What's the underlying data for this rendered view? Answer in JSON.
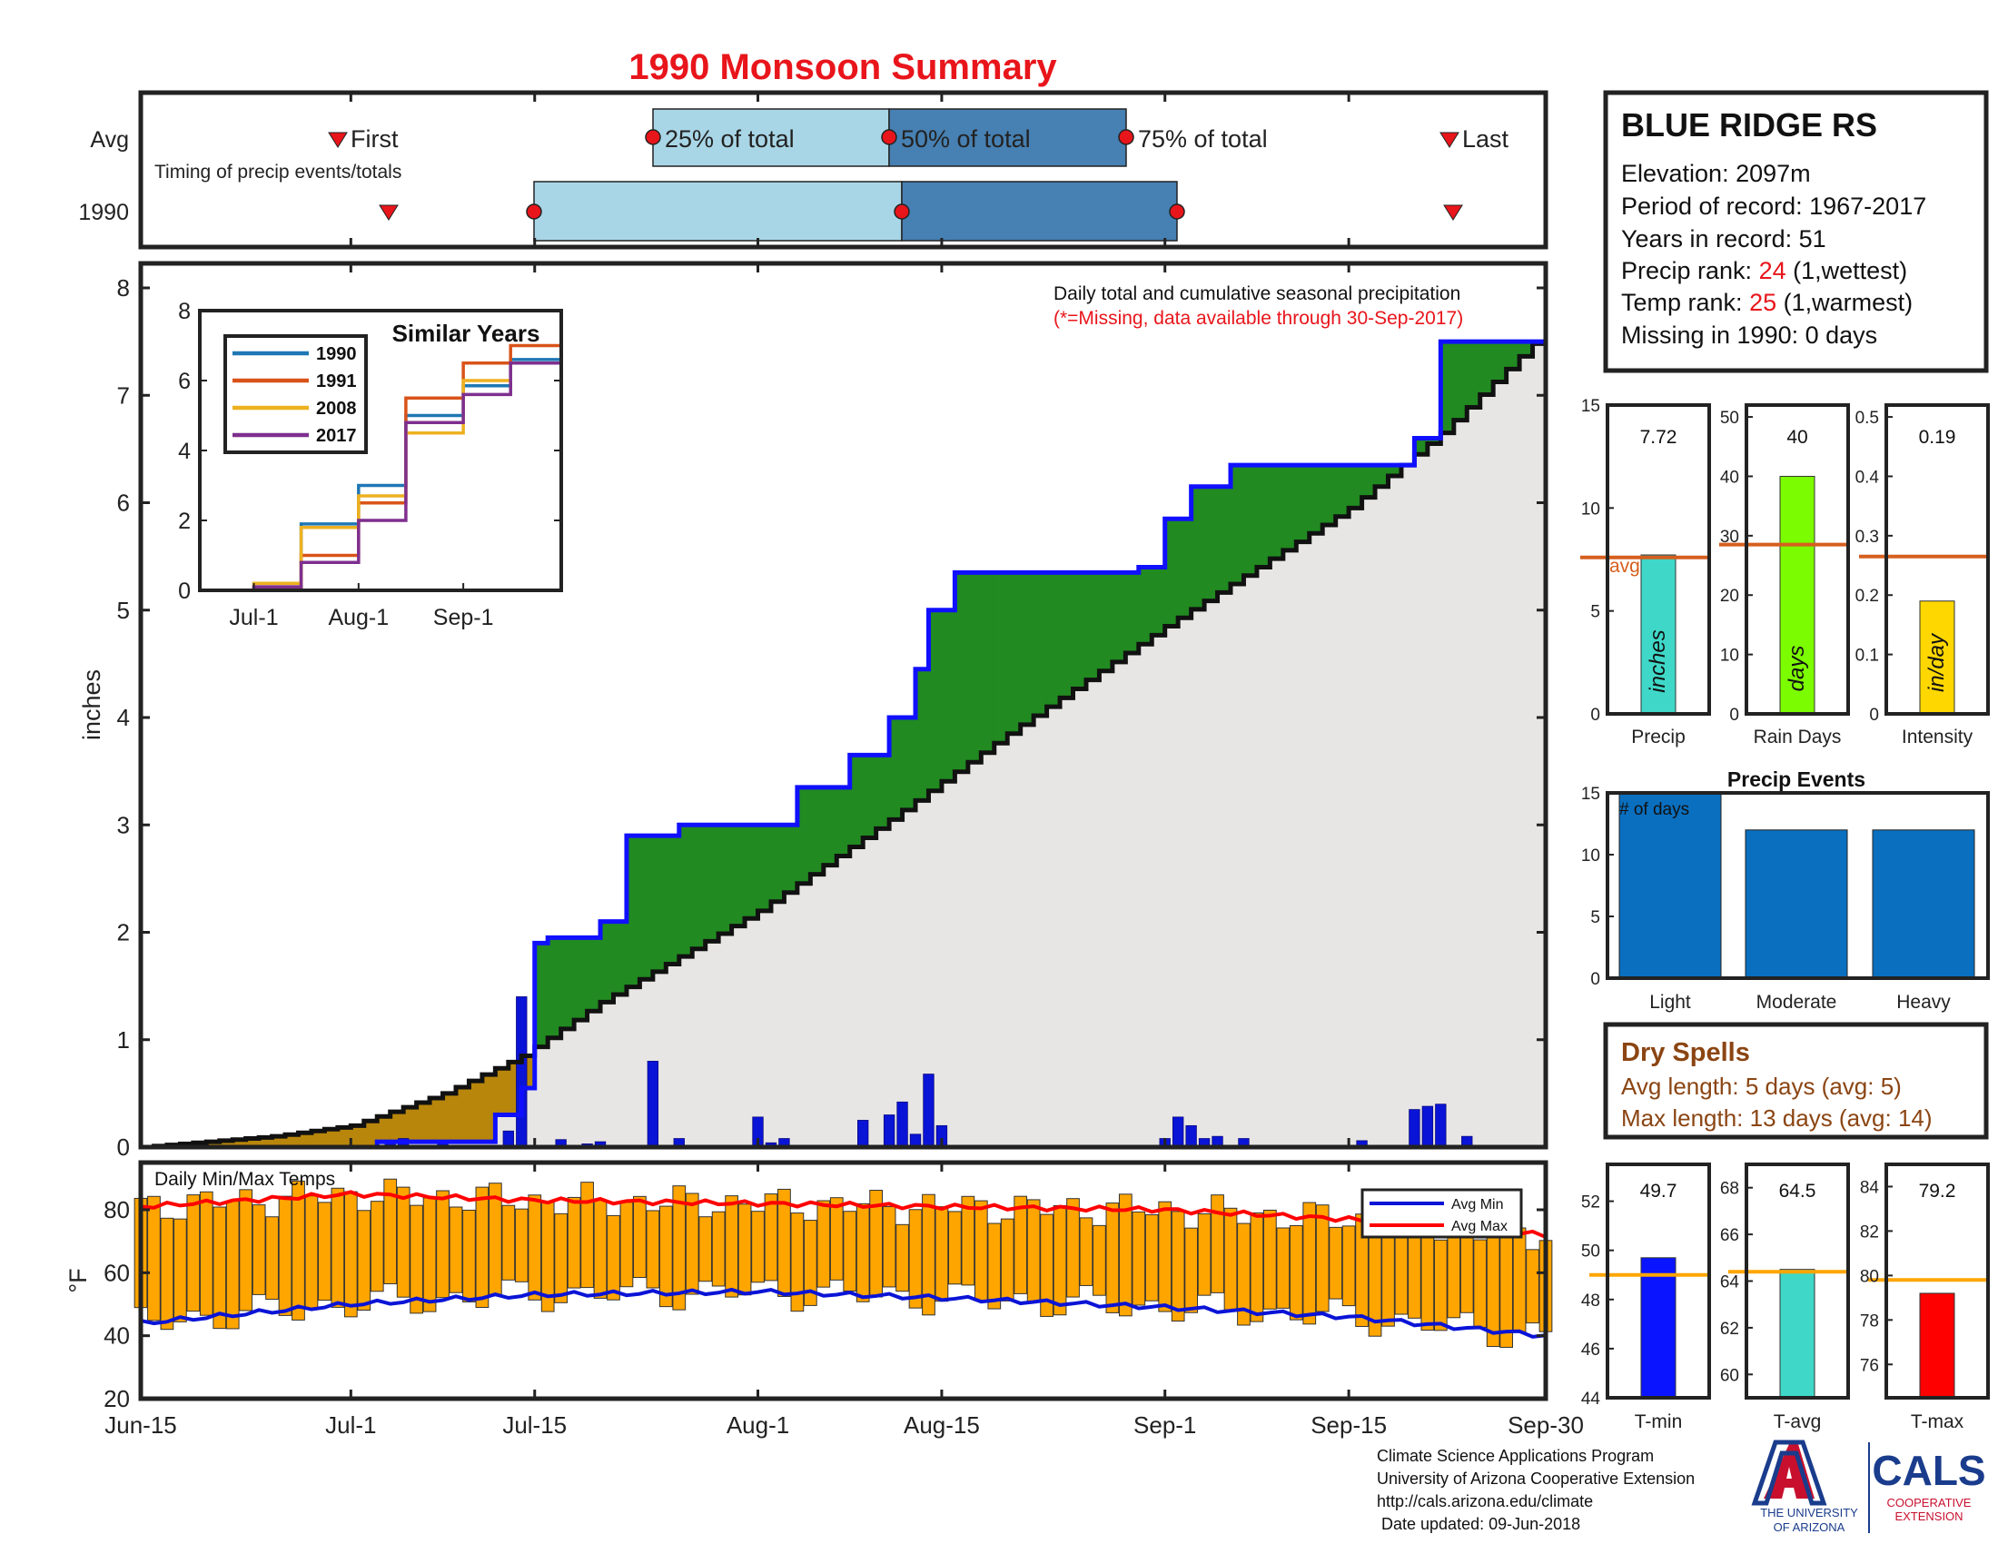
{
  "title": "1990 Monsoon Summary",
  "colors": {
    "title": "#e8151b",
    "cumulative_avg_fill": "#e8e6e4",
    "above_avg": "#218a21",
    "below_avg": "#b8860b",
    "year_line": "#1010ff",
    "avg_line": "#111111",
    "daily_bar": "#0a14d6",
    "temp_bar": "#ffa500",
    "avg_max": "#ff0000",
    "avg_min": "#0a14d6",
    "timing_light": "#a9d6e6",
    "timing_dark": "#4780b2",
    "marker_red": "#e8151b",
    "brown_text": "#8b4513",
    "orange_line": "#d65f1e",
    "precip_bar": "#3fd8c8",
    "raindays_bar": "#7cfc00",
    "intensity_bar": "#ffd700",
    "events_bar": "#0a6fbf",
    "tmin_bar": "#0a14ff",
    "tavg_bar": "#3fd8c8",
    "tmax_bar": "#ff0000",
    "temp_ref_line": "#ffa500",
    "ua_blue": "#1a3c8c",
    "ua_red": "#c8102e"
  },
  "timing": {
    "row_labels": [
      "Avg",
      "1990"
    ],
    "caption": "Timing of precip events/totals",
    "first_label": "First",
    "last_label": "Last",
    "p25_label": "25% of total",
    "p50_label": "50% of total",
    "p75_label": "75% of total",
    "avg": {
      "first": "Jul-1",
      "p25": "Jul-26",
      "p50": "Aug-10",
      "p75": "Aug-26",
      "last": "Sep-23"
    },
    "year": {
      "first": "Jul-3",
      "p25": "Jul-15",
      "p50": "Aug-11",
      "p75": "Sep-1",
      "last": "Sep-23"
    }
  },
  "station": {
    "name": "BLUE RIDGE RS",
    "elevation": "Elevation: 2097m",
    "period": "Period of record: 1967-2017",
    "years": "Years in record: 51",
    "precip_rank_label": "Precip rank: ",
    "precip_rank_value": "24",
    "precip_rank_note": " (1,wettest)",
    "temp_rank_label": "Temp rank: ",
    "temp_rank_value": "25",
    "temp_rank_note": " (1,warmest)",
    "missing": "Missing in 1990: 0 days"
  },
  "main_chart": {
    "ylabel": "inches",
    "ylim": [
      0,
      8
    ],
    "yticks": [
      "0",
      "1",
      "2",
      "3",
      "4",
      "5",
      "6",
      "7",
      "8"
    ],
    "note": "Daily total and cumulative seasonal precipitation",
    "note_missing": "(*=Missing, data available through 30-Sep-2017)"
  },
  "x_axis": {
    "ticks": [
      "Jun-15",
      "Jul-1",
      "Jul-15",
      "Aug-1",
      "Aug-15",
      "Sep-1",
      "Sep-15",
      "Sep-30"
    ]
  },
  "inset": {
    "title": "Similar Years",
    "yticks": [
      "0",
      "2",
      "4",
      "6",
      "8"
    ],
    "xticks": [
      "Jul-1",
      "Aug-1",
      "Sep-1"
    ],
    "legend": [
      {
        "name": "1990",
        "color": "#1f77b4"
      },
      {
        "name": "1991",
        "color": "#d95319"
      },
      {
        "name": "2008",
        "color": "#edb120"
      },
      {
        "name": "2017",
        "color": "#7e2f8e"
      }
    ]
  },
  "temps": {
    "label": "Daily Min/Max Temps",
    "ylabel": "°F",
    "ylim": [
      20,
      95
    ],
    "yticks": [
      "20",
      "40",
      "60",
      "80"
    ],
    "legend_min": "Avg Min",
    "legend_max": "Avg Max"
  },
  "summary": {
    "precip": {
      "value": "7.72",
      "label": "Precip",
      "unit": "inches",
      "avg_label": "avg",
      "yticks": [
        "0",
        "5",
        "10",
        "15"
      ]
    },
    "rain_days": {
      "value": "40",
      "label": "Rain Days",
      "unit": "days",
      "yticks": [
        "0",
        "10",
        "20",
        "30",
        "40",
        "50"
      ]
    },
    "intensity": {
      "value": "0.19",
      "label": "Intensity",
      "unit": "in/day",
      "yticks": [
        "0",
        "0.1",
        "0.2",
        "0.3",
        "0.4",
        "0.5"
      ]
    }
  },
  "events": {
    "title": "Precip Events",
    "note": "# of days",
    "yticks": [
      "0",
      "5",
      "10",
      "15"
    ],
    "categories": [
      "Light",
      "Moderate",
      "Heavy"
    ]
  },
  "dry_spells": {
    "title": "Dry Spells",
    "avg": "Avg length: 5 days (avg: 5)",
    "max": "Max length: 13 days (avg: 14)"
  },
  "temp_summary": {
    "tmin": {
      "value": "49.7",
      "label": "T-min",
      "yticks": [
        "44",
        "46",
        "48",
        "50",
        "52"
      ]
    },
    "tavg": {
      "value": "64.5",
      "label": "T-avg",
      "yticks": [
        "60",
        "62",
        "64",
        "66",
        "68"
      ]
    },
    "tmax": {
      "value": "79.2",
      "label": "T-max",
      "yticks": [
        "76",
        "78",
        "80",
        "82",
        "84"
      ]
    }
  },
  "footer": {
    "line1": "Climate Science Applications Program",
    "line2": "University of Arizona Cooperative Extension",
    "line3": "http://cals.arizona.edu/climate",
    "line4": " Date updated: 09-Jun-2018"
  },
  "logo": {
    "ua_name": "THE UNIVERSITY",
    "ua_name2": "OF ARIZONA",
    "cals": "CALS",
    "cals_sub1": "COOPERATIVE",
    "cals_sub2": "EXTENSION"
  },
  "chart_data": [
    {
      "type": "area",
      "title": "Daily total and cumulative seasonal precipitation",
      "ylabel": "inches",
      "ylim": [
        0,
        8
      ],
      "x_range": [
        "Jun-15",
        "Sep-30"
      ],
      "series": [
        {
          "name": "1990",
          "x": [
            "Jun-15",
            "Jul-3",
            "Jul-12",
            "Jul-14",
            "Jul-15",
            "Jul-16",
            "Jul-20",
            "Jul-22",
            "Jul-26",
            "Aug-4",
            "Aug-8",
            "Aug-11",
            "Aug-13",
            "Aug-14",
            "Aug-16",
            "Aug-30",
            "Sep-1",
            "Sep-3",
            "Sep-6",
            "Sep-20",
            "Sep-22",
            "Sep-30"
          ],
          "values": [
            0.0,
            0.05,
            0.3,
            0.55,
            1.9,
            1.95,
            2.1,
            2.9,
            3.0,
            3.35,
            3.65,
            4.0,
            4.45,
            5.0,
            5.35,
            5.4,
            5.85,
            6.15,
            6.35,
            6.6,
            7.5,
            7.72
          ]
        },
        {
          "name": "Avg",
          "x": [
            "Jun-15",
            "Jun-25",
            "Jul-1",
            "Jul-8",
            "Jul-14",
            "Jul-20",
            "Aug-1",
            "Aug-11",
            "Aug-20",
            "Sep-1",
            "Sep-15",
            "Sep-22",
            "Sep-30"
          ],
          "values": [
            0.0,
            0.1,
            0.2,
            0.5,
            0.85,
            1.35,
            2.2,
            3.05,
            3.85,
            4.85,
            5.95,
            6.65,
            7.6
          ]
        }
      ],
      "daily_bars": {
        "x": [
          "Jul-4",
          "Jul-5",
          "Jul-8",
          "Jul-13",
          "Jul-14",
          "Jul-17",
          "Jul-19",
          "Jul-20",
          "Jul-24",
          "Jul-26",
          "Aug-1",
          "Aug-2",
          "Aug-3",
          "Aug-9",
          "Aug-11",
          "Aug-12",
          "Aug-13",
          "Aug-14",
          "Aug-15",
          "Sep-1",
          "Sep-2",
          "Sep-3",
          "Sep-4",
          "Sep-5",
          "Sep-7",
          "Sep-16",
          "Sep-20",
          "Sep-21",
          "Sep-22",
          "Sep-24"
        ],
        "values": [
          0.05,
          0.08,
          0.05,
          0.15,
          1.4,
          0.07,
          0.03,
          0.05,
          0.8,
          0.08,
          0.28,
          0.04,
          0.08,
          0.25,
          0.3,
          0.42,
          0.12,
          0.68,
          0.2,
          0.08,
          0.28,
          0.2,
          0.08,
          0.1,
          0.08,
          0.06,
          0.35,
          0.38,
          0.4,
          0.1
        ]
      }
    },
    {
      "type": "bar",
      "title": "Daily Min/Max Temps",
      "ylabel": "°F",
      "ylim": [
        20,
        95
      ],
      "x_range": [
        "Jun-15",
        "Sep-30"
      ],
      "series": [
        {
          "name": "Avg Max",
          "x": [
            "Jun-15",
            "Jul-1",
            "Jul-15",
            "Aug-1",
            "Aug-15",
            "Sep-1",
            "Sep-15",
            "Sep-30"
          ],
          "values": [
            81,
            85,
            83,
            82,
            81,
            80,
            77,
            72
          ]
        },
        {
          "name": "Avg Min",
          "x": [
            "Jun-15",
            "Jul-1",
            "Jul-15",
            "Aug-1",
            "Aug-15",
            "Sep-1",
            "Sep-15",
            "Sep-30"
          ],
          "values": [
            44,
            50,
            53,
            54,
            52,
            49,
            46,
            40
          ]
        }
      ]
    },
    {
      "type": "line",
      "title": "Similar Years",
      "ylim": [
        0,
        8
      ],
      "x": [
        "Jun-15",
        "Jul-1",
        "Jul-15",
        "Aug-1",
        "Aug-15",
        "Sep-1",
        "Sep-15",
        "Sep-30"
      ],
      "series": [
        {
          "name": "1990",
          "values": [
            0,
            0.05,
            1.9,
            3.0,
            5.0,
            5.85,
            6.6,
            7.72
          ]
        },
        {
          "name": "1991",
          "values": [
            0,
            0.1,
            1.0,
            2.5,
            5.5,
            6.5,
            7.0,
            7.6
          ]
        },
        {
          "name": "2008",
          "values": [
            0,
            0.2,
            1.8,
            2.7,
            4.5,
            6.0,
            6.5,
            7.5
          ]
        },
        {
          "name": "2017",
          "values": [
            0,
            0.1,
            0.8,
            2.0,
            4.8,
            5.6,
            6.5,
            7.0
          ]
        }
      ]
    },
    {
      "type": "bar",
      "title": "Precip Events",
      "categories": [
        "Light",
        "Moderate",
        "Heavy"
      ],
      "values": [
        15,
        12,
        12
      ],
      "ylim": [
        0,
        15
      ]
    },
    {
      "type": "bar",
      "categories": [
        "Precip",
        "Rain Days",
        "Intensity"
      ],
      "series": [
        {
          "name": "1990",
          "values": [
            7.72,
            40,
            0.19
          ]
        },
        {
          "name": "avg",
          "values": [
            7.6,
            28.5,
            0.265
          ]
        }
      ],
      "ylims": [
        [
          0,
          15
        ],
        [
          0,
          52
        ],
        [
          0,
          0.52
        ]
      ]
    },
    {
      "type": "bar",
      "categories": [
        "T-min",
        "T-avg",
        "T-max"
      ],
      "series": [
        {
          "name": "1990",
          "values": [
            49.7,
            64.5,
            79.2
          ]
        },
        {
          "name": "avg",
          "values": [
            49.0,
            64.4,
            79.8
          ]
        }
      ],
      "ylims": [
        [
          44,
          53.5
        ],
        [
          59,
          69
        ],
        [
          74.5,
          85
        ]
      ]
    }
  ]
}
